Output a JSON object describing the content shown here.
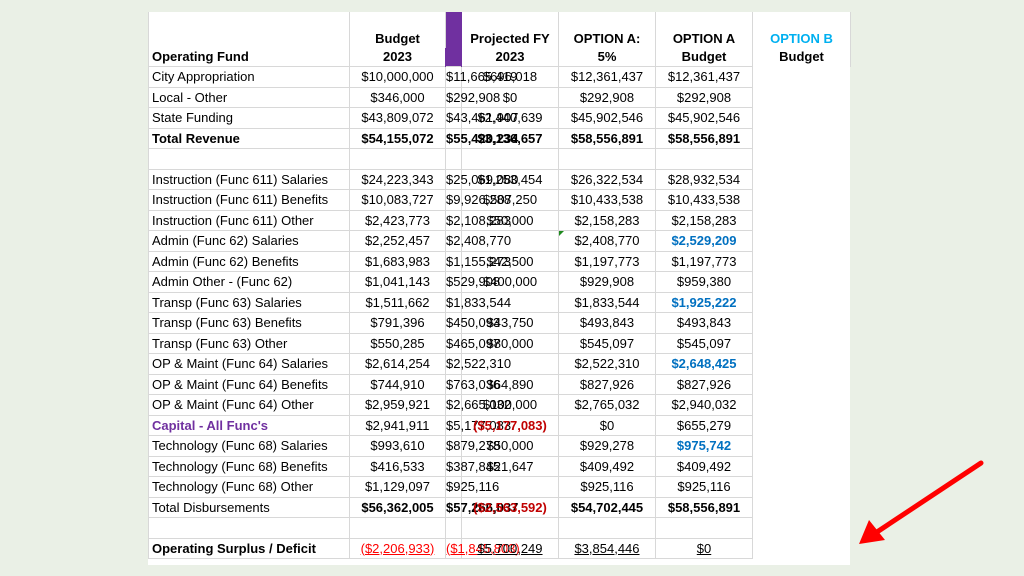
{
  "sheet": {
    "title": "Operating Fund",
    "columns": [
      {
        "line1": "Budget",
        "line2": "2023"
      },
      {
        "line1": "Projected FY",
        "line2": "2023"
      },
      {
        "line1": "OPTION A:",
        "line2": "5%"
      },
      {
        "line1": "OPTION A",
        "line2": "Budget"
      },
      {
        "line1": "OPTION B",
        "line2": "Budget"
      }
    ],
    "revenue": [
      {
        "label": "City Appropriation",
        "values": [
          "$10,000,000",
          "$11,665,419",
          "$696,018",
          "$12,361,437",
          "$12,361,437"
        ]
      },
      {
        "label": "Local - Other",
        "values": [
          "$346,000",
          "$292,908",
          "$0",
          "$292,908",
          "$292,908"
        ]
      },
      {
        "label": "State Funding",
        "values": [
          "$43,809,072",
          "$43,461,907",
          "$2,440,639",
          "$45,902,546",
          "$45,902,546"
        ]
      },
      {
        "label": "Total Revenue",
        "values": [
          "$54,155,072",
          "$55,420,234",
          "$3,136,657",
          "$58,556,891",
          "$58,556,891"
        ]
      }
    ],
    "disbursements": [
      {
        "label": "Instruction (Func 611) Salaries",
        "values": [
          "$24,223,343",
          "$25,069,080",
          "$1,253,454",
          "$26,322,534",
          "$28,932,534"
        ]
      },
      {
        "label": "Instruction (Func 611) Benefits",
        "values": [
          "$10,083,727",
          "$9,926,288",
          "$507,250",
          "$10,433,538",
          "$10,433,538"
        ]
      },
      {
        "label": "Instruction (Func 611) Other",
        "values": [
          "$2,423,773",
          "$2,108,283",
          "$50,000",
          "$2,158,283",
          "$2,158,283"
        ]
      },
      {
        "label": "Admin (Func 62)  Salaries",
        "values": [
          "$2,252,457",
          "$2,408,770",
          "",
          "$2,408,770",
          "$2,529,209"
        ]
      },
      {
        "label": "Admin (Func 62)  Benefits",
        "values": [
          "$1,683,983",
          "$1,155,273",
          "$42,500",
          "$1,197,773",
          "$1,197,773"
        ]
      },
      {
        "label": "Admin Other -  (Func 62)",
        "values": [
          "$1,041,143",
          "$529,908",
          "$400,000",
          "$929,908",
          "$959,380"
        ]
      },
      {
        "label": "Transp (Func 63) Salaries",
        "values": [
          "$1,511,662",
          "$1,833,544",
          "",
          "$1,833,544",
          "$1,925,222"
        ]
      },
      {
        "label": "Transp (Func 63) Benefits",
        "values": [
          "$791,396",
          "$450,093",
          "$43,750",
          "$493,843",
          "$493,843"
        ]
      },
      {
        "label": "Transp (Func 63) Other",
        "values": [
          "$550,285",
          "$465,097",
          "$80,000",
          "$545,097",
          "$545,097"
        ]
      },
      {
        "label": "OP & Maint (Func 64) Salaries",
        "values": [
          "$2,614,254",
          "$2,522,310",
          "",
          "$2,522,310",
          "$2,648,425"
        ]
      },
      {
        "label": "OP & Maint (Func 64) Benefits",
        "values": [
          "$744,910",
          "$763,036",
          "$64,890",
          "$827,926",
          "$827,926"
        ]
      },
      {
        "label": "OP & Maint (Func 64) Other",
        "values": [
          "$2,959,921",
          "$2,665,032",
          "$100,000",
          "$2,765,032",
          "$2,940,032"
        ]
      },
      {
        "label": "Capital - All Func's",
        "values": [
          "$2,941,911",
          "$5,177,083",
          "($5,177,083)",
          "$0",
          "$655,279"
        ]
      },
      {
        "label": "Technology (Func 68) Salaries",
        "values": [
          "$993,610",
          "$879,278",
          "$50,000",
          "$929,278",
          "$975,742"
        ]
      },
      {
        "label": "Technology (Func 68) Benefits",
        "values": [
          "$416,533",
          "$387,845",
          "$21,647",
          "$409,492",
          "$409,492"
        ]
      },
      {
        "label": "Technology (Func 68) Other",
        "values": [
          "$1,129,097",
          "$925,116",
          "",
          "$925,116",
          "$925,116"
        ]
      },
      {
        "label": "Total Disbursements",
        "values": [
          "$56,362,005",
          "$57,266,037",
          "($2,563,592)",
          "$54,702,445",
          "$58,556,891"
        ]
      }
    ],
    "surplus": {
      "label": "Operating Surplus / Deficit",
      "values": [
        "($2,206,933)",
        "($1,845,803)",
        "$5,700,249",
        "$3,854,446",
        "$0"
      ]
    }
  },
  "colors": {
    "accent_bar": "#7030a0",
    "option_b_header": "#00b0f0",
    "increase_blue": "#0070c0",
    "deficit_red": "#ff0000",
    "arrow": "#ff0000"
  },
  "icons": {
    "arrow": "red-arrow-icon"
  }
}
